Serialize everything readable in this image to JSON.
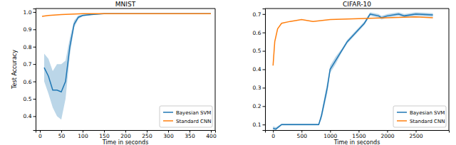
{
  "chart_data": [
    {
      "type": "line",
      "title": "MNIST",
      "x_label": "Time in seconds",
      "y_label": "Test Accuracy",
      "xlim": [
        -10,
        410
      ],
      "ylim": [
        0.32,
        1.02
      ],
      "xticks": [
        0,
        50,
        100,
        150,
        200,
        250,
        300,
        350,
        400
      ],
      "yticks": [
        0.4,
        0.5,
        0.6,
        0.7,
        0.8,
        0.9,
        {
          "value": 1.0,
          "label": "1.0"
        }
      ],
      "legend": "lower right",
      "series": [
        {
          "name": "Bayesian SVM",
          "color": "#1f77b4",
          "x": [
            10,
            20,
            30,
            40,
            50,
            60,
            70,
            80,
            90,
            100,
            120,
            150,
            200,
            300,
            400
          ],
          "values": [
            0.68,
            0.63,
            0.55,
            0.55,
            0.54,
            0.6,
            0.8,
            0.93,
            0.97,
            0.98,
            0.985,
            0.99,
            0.99,
            0.99,
            0.99
          ],
          "band_low": [
            0.6,
            0.53,
            0.45,
            0.4,
            0.38,
            0.5,
            0.75,
            0.91,
            0.96,
            0.975,
            0.982,
            0.988,
            0.989,
            0.989,
            0.989
          ],
          "band_high": [
            0.76,
            0.73,
            0.66,
            0.7,
            0.7,
            0.72,
            0.85,
            0.95,
            0.98,
            0.985,
            0.988,
            0.992,
            0.991,
            0.991,
            0.991
          ]
        },
        {
          "name": "Standard CNN",
          "color": "#ff7f0e",
          "x": [
            5,
            20,
            50,
            100,
            150,
            200,
            300,
            400
          ],
          "values": [
            0.975,
            0.98,
            0.985,
            0.99,
            0.99,
            0.99,
            0.99,
            0.99
          ]
        }
      ]
    },
    {
      "type": "line",
      "title": "CIFAR-10",
      "x_label": "Time in seconds",
      "xlim": [
        -140,
        3080
      ],
      "ylim": [
        0.07,
        0.73
      ],
      "xticks": [
        0,
        500,
        1000,
        1500,
        2000,
        2500
      ],
      "yticks": [
        0.1,
        0.2,
        0.3,
        0.4,
        0.5,
        0.6,
        0.7
      ],
      "legend": "lower right",
      "series": [
        {
          "name": "Bayesian SVM",
          "color": "#1f77b4",
          "x": [
            0,
            50,
            150,
            400,
            800,
            850,
            950,
            1000,
            1100,
            1200,
            1300,
            1450,
            1600,
            1700,
            1850,
            1900,
            2000,
            2200,
            2300,
            2500,
            2800
          ],
          "values": [
            0.08,
            0.075,
            0.1,
            0.1,
            0.1,
            0.15,
            0.3,
            0.4,
            0.45,
            0.5,
            0.55,
            0.6,
            0.65,
            0.7,
            0.69,
            0.68,
            0.69,
            0.7,
            0.69,
            0.7,
            0.695
          ],
          "band_low": [
            0.07,
            0.07,
            0.095,
            0.095,
            0.095,
            0.13,
            0.27,
            0.38,
            0.43,
            0.49,
            0.54,
            0.59,
            0.64,
            0.69,
            0.68,
            0.67,
            0.68,
            0.69,
            0.68,
            0.69,
            0.685
          ],
          "band_high": [
            0.09,
            0.085,
            0.105,
            0.105,
            0.105,
            0.17,
            0.33,
            0.42,
            0.47,
            0.51,
            0.56,
            0.61,
            0.66,
            0.71,
            0.7,
            0.69,
            0.7,
            0.71,
            0.7,
            0.71,
            0.705
          ]
        },
        {
          "name": "Standard CNN",
          "color": "#ff7f0e",
          "x": [
            0,
            30,
            80,
            150,
            300,
            500,
            700,
            1000,
            1500,
            2000,
            2500,
            2800
          ],
          "values": [
            0.42,
            0.55,
            0.62,
            0.65,
            0.66,
            0.67,
            0.66,
            0.67,
            0.675,
            0.68,
            0.685,
            0.68
          ]
        }
      ]
    }
  ]
}
